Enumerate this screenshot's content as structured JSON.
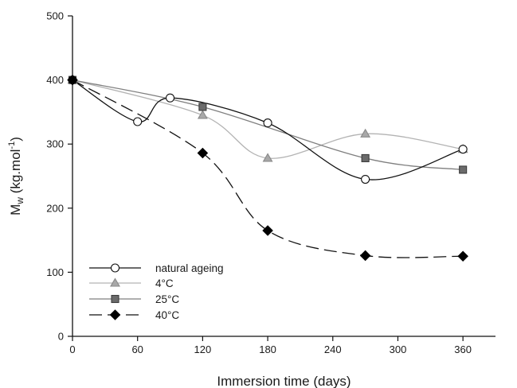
{
  "chart_data": {
    "type": "line",
    "xlabel": "Immersion time (days)",
    "ylabel": {
      "main": "M",
      "sub": "w",
      "unit_open": " (kg.mol",
      "unit_sup": "-1",
      "unit_close": ")"
    },
    "xlim": [
      0,
      390
    ],
    "ylim": [
      0,
      500
    ],
    "xticks": [
      0,
      60,
      120,
      180,
      240,
      300,
      360
    ],
    "yticks": [
      0,
      100,
      200,
      300,
      400,
      500
    ],
    "grid": false,
    "legend_position": "bottom-left",
    "series": [
      {
        "name": "natural ageing",
        "marker": "circle",
        "line": "solid",
        "line_color": "#111111",
        "marker_fill": "#ffffff",
        "marker_stroke": "#111111",
        "x": [
          0,
          60,
          90,
          180,
          270,
          360
        ],
        "y": [
          400,
          335,
          372,
          333,
          245,
          292
        ]
      },
      {
        "name": "4°C",
        "marker": "triangle",
        "line": "solid",
        "line_color": "#b3b3b3",
        "marker_fill": "#a8a8a8",
        "marker_stroke": "#8a8a8a",
        "x": [
          0,
          120,
          180,
          270,
          360
        ],
        "y": [
          400,
          345,
          278,
          316,
          292
        ]
      },
      {
        "name": "25°C",
        "marker": "square",
        "line": "solid",
        "line_color": "#7f7f7f",
        "marker_fill": "#6b6b6b",
        "marker_stroke": "#3c3c3c",
        "x": [
          0,
          120,
          270,
          360
        ],
        "y": [
          400,
          358,
          278,
          260
        ]
      },
      {
        "name": "40°C",
        "marker": "diamond",
        "line": "dashed",
        "line_color": "#111111",
        "marker_fill": "#000000",
        "marker_stroke": "#000000",
        "x": [
          0,
          120,
          180,
          270,
          360
        ],
        "y": [
          400,
          286,
          165,
          126,
          125
        ]
      }
    ]
  }
}
